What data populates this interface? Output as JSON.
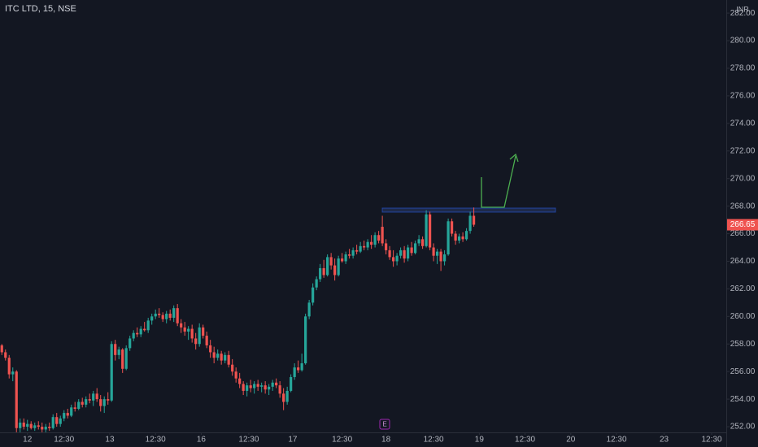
{
  "chart_data": {
    "type": "candlestick",
    "title": "ITC LTD, 15, NSE",
    "currency": "INR",
    "event_marker": "E",
    "up_color": "#26a69a",
    "down_color": "#ef5350",
    "grid": false,
    "ylim": [
      251.59,
      282.95
    ],
    "xlim": [
      -0.5,
      198
    ],
    "yticks": [
      {
        "value": 252,
        "label": "252.00"
      },
      {
        "value": 254,
        "label": "254.00"
      },
      {
        "value": 256,
        "label": "256.00"
      },
      {
        "value": 258,
        "label": "258.00"
      },
      {
        "value": 260,
        "label": "260.00"
      },
      {
        "value": 262,
        "label": "262.00"
      },
      {
        "value": 264,
        "label": "264.00"
      },
      {
        "value": 266,
        "label": "266.00"
      },
      {
        "value": 268,
        "label": "268.00"
      },
      {
        "value": 270,
        "label": "270.00"
      },
      {
        "value": 272,
        "label": "272.00"
      },
      {
        "value": 274,
        "label": "274.00"
      },
      {
        "value": 276,
        "label": "276.00"
      },
      {
        "value": 278,
        "label": "278.00"
      },
      {
        "value": 280,
        "label": "280.00"
      },
      {
        "value": 282,
        "label": "282.00"
      }
    ],
    "xticks": [
      {
        "value": 7,
        "label": "12"
      },
      {
        "value": 17,
        "label": "12:30"
      },
      {
        "value": 29.5,
        "label": "13"
      },
      {
        "value": 42,
        "label": "12:30"
      },
      {
        "value": 54.5,
        "label": "16"
      },
      {
        "value": 67.5,
        "label": "12:30"
      },
      {
        "value": 79.5,
        "label": "17"
      },
      {
        "value": 93,
        "label": "12:30"
      },
      {
        "value": 105,
        "label": "18"
      },
      {
        "value": 118,
        "label": "12:30"
      },
      {
        "value": 130.5,
        "label": "19"
      },
      {
        "value": 143,
        "label": "12:30"
      },
      {
        "value": 155.5,
        "label": "20"
      },
      {
        "value": 168,
        "label": "12:30"
      },
      {
        "value": 181,
        "label": "23"
      },
      {
        "value": 194,
        "label": "12:30"
      }
    ],
    "x": [
      0,
      1,
      2,
      3,
      4,
      5,
      6,
      7,
      8,
      9,
      10,
      11,
      12,
      13,
      14,
      15,
      16,
      17,
      18,
      19,
      20,
      21,
      22,
      23,
      24,
      25,
      26,
      27,
      28,
      29,
      30,
      31,
      32,
      33,
      34,
      35,
      36,
      37,
      38,
      39,
      40,
      41,
      42,
      43,
      44,
      45,
      46,
      47,
      48,
      49,
      50,
      51,
      52,
      53,
      54,
      55,
      56,
      57,
      58,
      59,
      60,
      61,
      62,
      63,
      64,
      65,
      66,
      67,
      68,
      69,
      70,
      71,
      72,
      73,
      74,
      75,
      76,
      77,
      78,
      79,
      80,
      81,
      82,
      83,
      84,
      85,
      86,
      87,
      88,
      89,
      90,
      91,
      92,
      93,
      94,
      95,
      96,
      97,
      98,
      99,
      100,
      101,
      102,
      103,
      104,
      105,
      106,
      107,
      108,
      109,
      110,
      111,
      112,
      113,
      114,
      115,
      116,
      117,
      118,
      119,
      120,
      121,
      122,
      123,
      124,
      125,
      126,
      127,
      128,
      129
    ],
    "ohlc": [
      [
        257.9,
        258.0,
        257.2,
        257.4
      ],
      [
        257.4,
        257.6,
        256.8,
        257.0
      ],
      [
        257.0,
        257.2,
        255.5,
        255.8
      ],
      [
        255.8,
        256.3,
        255.3,
        256.0
      ],
      [
        256.0,
        256.1,
        251.6,
        251.9
      ],
      [
        251.9,
        252.6,
        251.6,
        252.3
      ],
      [
        252.3,
        252.6,
        251.8,
        252.0
      ],
      [
        252.0,
        252.5,
        251.7,
        252.2
      ],
      [
        252.2,
        252.4,
        251.8,
        251.9
      ],
      [
        251.9,
        252.3,
        251.7,
        252.1
      ],
      [
        252.1,
        252.4,
        251.8,
        252.0
      ],
      [
        252.0,
        252.3,
        251.6,
        251.8
      ],
      [
        251.8,
        252.2,
        251.6,
        252.0
      ],
      [
        252.0,
        252.3,
        251.7,
        251.9
      ],
      [
        251.9,
        252.9,
        251.8,
        252.7
      ],
      [
        252.7,
        253.0,
        252.0,
        252.2
      ],
      [
        252.2,
        252.8,
        252.0,
        252.6
      ],
      [
        252.6,
        253.2,
        252.4,
        253.0
      ],
      [
        253.0,
        253.3,
        252.6,
        252.8
      ],
      [
        252.8,
        253.6,
        252.7,
        253.4
      ],
      [
        253.4,
        253.8,
        253.1,
        253.3
      ],
      [
        253.3,
        254.0,
        253.2,
        253.8
      ],
      [
        253.8,
        254.1,
        253.4,
        253.6
      ],
      [
        253.6,
        254.2,
        253.4,
        254.0
      ],
      [
        254.0,
        254.4,
        253.7,
        253.9
      ],
      [
        253.9,
        254.6,
        253.5,
        254.4
      ],
      [
        254.4,
        254.8,
        253.8,
        254.0
      ],
      [
        254.0,
        254.3,
        253.1,
        253.5
      ],
      [
        253.5,
        254.2,
        253.0,
        254.0
      ],
      [
        254.0,
        254.5,
        253.6,
        253.9
      ],
      [
        253.9,
        258.2,
        253.8,
        258.0
      ],
      [
        258.0,
        258.3,
        256.8,
        257.2
      ],
      [
        257.2,
        257.8,
        256.9,
        257.6
      ],
      [
        257.6,
        257.7,
        255.9,
        256.2
      ],
      [
        256.2,
        257.9,
        256.1,
        257.7
      ],
      [
        257.7,
        258.6,
        257.5,
        258.4
      ],
      [
        258.4,
        259.0,
        258.2,
        258.8
      ],
      [
        258.8,
        259.2,
        258.5,
        258.7
      ],
      [
        258.7,
        259.3,
        258.5,
        259.1
      ],
      [
        259.1,
        259.6,
        258.9,
        259.0
      ],
      [
        259.0,
        259.9,
        258.8,
        259.7
      ],
      [
        259.7,
        260.2,
        259.4,
        260.0
      ],
      [
        260.0,
        260.5,
        259.8,
        260.2
      ],
      [
        260.2,
        260.6,
        259.9,
        260.1
      ],
      [
        260.1,
        260.3,
        259.6,
        259.8
      ],
      [
        259.8,
        260.4,
        259.5,
        260.2
      ],
      [
        260.2,
        260.5,
        259.7,
        259.9
      ],
      [
        259.9,
        260.8,
        259.6,
        260.6
      ],
      [
        260.6,
        260.9,
        259.3,
        259.5
      ],
      [
        259.5,
        259.8,
        258.8,
        259.2
      ],
      [
        259.2,
        259.6,
        258.6,
        258.9
      ],
      [
        258.9,
        259.3,
        258.3,
        259.1
      ],
      [
        259.1,
        259.4,
        258.1,
        258.4
      ],
      [
        258.4,
        258.8,
        257.6,
        258.0
      ],
      [
        258.0,
        259.5,
        257.8,
        259.2
      ],
      [
        259.2,
        259.4,
        258.4,
        258.6
      ],
      [
        258.6,
        258.9,
        257.7,
        257.9
      ],
      [
        257.9,
        258.3,
        257.0,
        257.4
      ],
      [
        257.4,
        257.8,
        256.6,
        257.0
      ],
      [
        257.0,
        257.6,
        256.8,
        257.3
      ],
      [
        257.3,
        257.5,
        256.5,
        256.8
      ],
      [
        256.8,
        257.4,
        256.6,
        257.2
      ],
      [
        257.2,
        257.5,
        256.3,
        256.5
      ],
      [
        256.5,
        256.9,
        255.7,
        256.0
      ],
      [
        256.0,
        256.3,
        255.2,
        255.5
      ],
      [
        255.5,
        255.9,
        254.8,
        255.1
      ],
      [
        255.1,
        255.3,
        254.3,
        254.6
      ],
      [
        254.6,
        255.2,
        254.2,
        255.0
      ],
      [
        255.0,
        255.4,
        254.5,
        254.8
      ],
      [
        254.8,
        255.3,
        254.4,
        255.1
      ],
      [
        255.1,
        255.4,
        254.6,
        254.9
      ],
      [
        254.9,
        255.2,
        254.5,
        255.0
      ],
      [
        255.0,
        255.3,
        254.4,
        254.7
      ],
      [
        254.7,
        255.1,
        254.3,
        254.9
      ],
      [
        254.9,
        255.4,
        254.6,
        255.2
      ],
      [
        255.2,
        255.5,
        254.8,
        255.0
      ],
      [
        255.0,
        255.3,
        254.1,
        254.4
      ],
      [
        254.4,
        254.8,
        253.2,
        253.8
      ],
      [
        253.8,
        254.9,
        253.6,
        254.6
      ],
      [
        254.6,
        255.8,
        254.5,
        255.6
      ],
      [
        255.6,
        256.6,
        255.4,
        256.3
      ],
      [
        256.3,
        256.8,
        255.9,
        256.1
      ],
      [
        256.1,
        257.3,
        256.0,
        256.6
      ],
      [
        256.6,
        260.2,
        256.5,
        260.0
      ],
      [
        260.0,
        261.2,
        259.8,
        261.0
      ],
      [
        261.0,
        262.4,
        260.8,
        262.1
      ],
      [
        262.1,
        262.9,
        261.9,
        262.7
      ],
      [
        262.7,
        263.8,
        262.5,
        263.5
      ],
      [
        263.5,
        264.1,
        262.8,
        263.0
      ],
      [
        263.0,
        264.5,
        262.9,
        264.3
      ],
      [
        264.3,
        264.6,
        263.4,
        263.7
      ],
      [
        263.7,
        264.2,
        262.6,
        263.0
      ],
      [
        263.0,
        264.4,
        262.9,
        264.2
      ],
      [
        264.2,
        264.6,
        263.9,
        264.0
      ],
      [
        264.0,
        264.7,
        263.8,
        264.5
      ],
      [
        264.5,
        264.9,
        264.2,
        264.4
      ],
      [
        264.4,
        265.0,
        264.2,
        264.8
      ],
      [
        264.8,
        265.2,
        264.5,
        264.7
      ],
      [
        264.7,
        265.4,
        264.6,
        265.1
      ],
      [
        265.1,
        265.5,
        264.8,
        265.0
      ],
      [
        265.0,
        265.6,
        264.8,
        265.4
      ],
      [
        265.4,
        265.9,
        264.9,
        265.2
      ],
      [
        265.2,
        266.1,
        265.0,
        265.9
      ],
      [
        265.9,
        266.2,
        265.3,
        265.5
      ],
      [
        266.5,
        267.3,
        265.1,
        265.3
      ],
      [
        265.3,
        265.6,
        264.5,
        264.8
      ],
      [
        264.8,
        265.1,
        264.1,
        264.3
      ],
      [
        264.3,
        264.8,
        263.6,
        264.0
      ],
      [
        264.0,
        264.6,
        263.7,
        264.4
      ],
      [
        264.4,
        265.0,
        264.2,
        264.8
      ],
      [
        264.8,
        265.1,
        263.9,
        264.2
      ],
      [
        264.2,
        265.2,
        264.0,
        265.0
      ],
      [
        265.0,
        265.4,
        264.4,
        264.6
      ],
      [
        264.6,
        265.5,
        264.5,
        265.3
      ],
      [
        265.3,
        265.9,
        265.1,
        265.6
      ],
      [
        265.6,
        265.8,
        264.9,
        265.1
      ],
      [
        265.1,
        267.7,
        265.0,
        267.4
      ],
      [
        267.4,
        267.6,
        264.8,
        265.0
      ],
      [
        265.0,
        265.3,
        264.0,
        264.4
      ],
      [
        264.4,
        264.9,
        263.8,
        264.7
      ],
      [
        264.7,
        264.9,
        263.3,
        264.0
      ],
      [
        264.0,
        264.8,
        263.7,
        264.5
      ],
      [
        264.5,
        267.1,
        264.4,
        266.9
      ],
      [
        266.9,
        267.1,
        265.8,
        266.0
      ],
      [
        266.0,
        266.2,
        265.2,
        265.5
      ],
      [
        265.5,
        266.0,
        265.3,
        265.8
      ],
      [
        265.8,
        266.1,
        265.4,
        265.6
      ],
      [
        265.6,
        266.4,
        265.5,
        266.2
      ],
      [
        266.2,
        267.6,
        266.0,
        267.3
      ],
      [
        267.3,
        267.9,
        266.5,
        266.65
      ]
    ]
  }
}
